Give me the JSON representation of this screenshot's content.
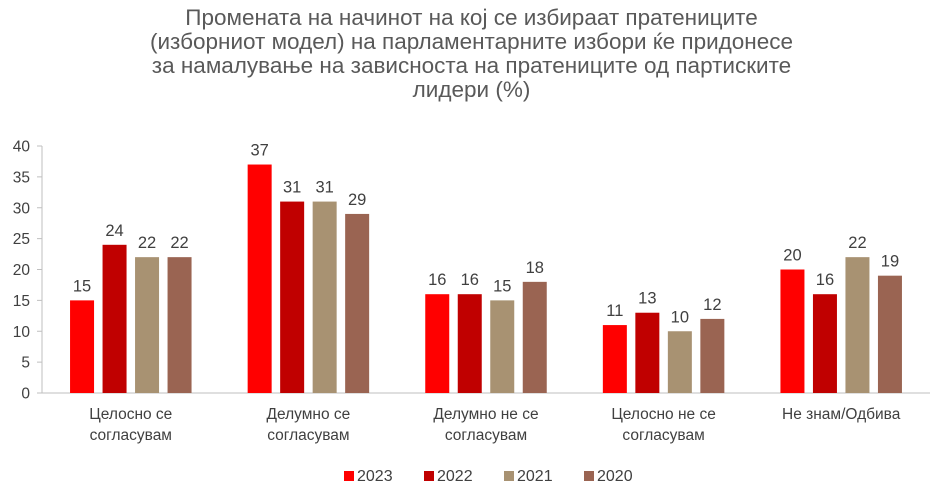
{
  "chart_data": {
    "type": "bar",
    "title_lines": [
      "Промената на начинот на кој се избираат пратениците",
      "(изборниот модел) на парламентарните избори ќе придонесе",
      "за намалување на зависноста на пратениците од партиските",
      "лидери (%)"
    ],
    "categories": [
      [
        "Целосно се",
        "согласувам"
      ],
      [
        "Делумно се",
        "согласувам"
      ],
      [
        "Делумно не се",
        "согласувам"
      ],
      [
        "Целосно не се",
        "согласувам"
      ],
      [
        "Не знам/Одбива"
      ]
    ],
    "series": [
      {
        "name": "2023",
        "color": "#ff0000",
        "values": [
          15,
          37,
          16,
          11,
          20
        ]
      },
      {
        "name": "2022",
        "color": "#c00000",
        "values": [
          24,
          31,
          16,
          13,
          16
        ]
      },
      {
        "name": "2021",
        "color": "#a89272",
        "values": [
          22,
          31,
          15,
          10,
          22
        ]
      },
      {
        "name": "2020",
        "color": "#9a6452",
        "values": [
          22,
          29,
          18,
          12,
          19
        ]
      }
    ],
    "ylim": [
      0,
      40
    ],
    "yticks": [
      0,
      5,
      10,
      15,
      20,
      25,
      30,
      35,
      40
    ],
    "grid": false,
    "legend_position": "bottom"
  }
}
